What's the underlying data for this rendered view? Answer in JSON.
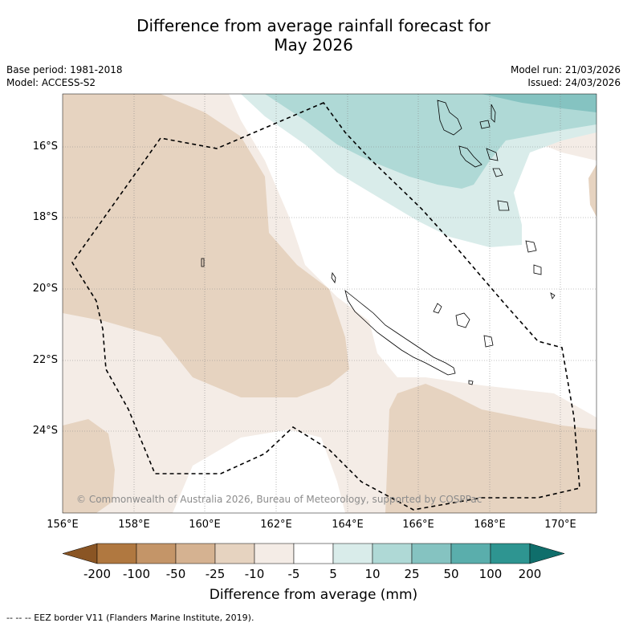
{
  "title_line1": "Difference from average rainfall forecast for",
  "title_line2": "May 2026",
  "base_period": "Base period: 1981-2018",
  "model": "Model: ACCESS-S2",
  "model_run": "Model run: 21/03/2026",
  "issued": "Issued: 24/03/2026",
  "copyright": "© Commonwealth of Australia 2026, Bureau of Meteorology, supported by COSPPac",
  "footnote": "-- -- -- EEZ border V11 (Flanders Marine Institute, 2019).",
  "lat_labels": [
    "16°S",
    "18°S",
    "20°S",
    "22°S",
    "24°S"
  ],
  "lon_labels": [
    "156°E",
    "158°E",
    "160°E",
    "162°E",
    "164°E",
    "166°E",
    "168°E",
    "170°E"
  ],
  "colorbar": {
    "title": "Difference from average (mm)",
    "tick_labels": [
      "-200",
      "-100",
      "-50",
      "-25",
      "-10",
      "-5",
      "5",
      "10",
      "25",
      "50",
      "100",
      "200"
    ],
    "colors": [
      "#8a5524",
      "#b07840",
      "#c49568",
      "#d5b291",
      "#e6d3c0",
      "#f4ece6",
      "#ffffff",
      "#d9ecea",
      "#afd9d6",
      "#85c3c1",
      "#5aaeac",
      "#2e9591",
      "#0f6e6b"
    ]
  }
}
